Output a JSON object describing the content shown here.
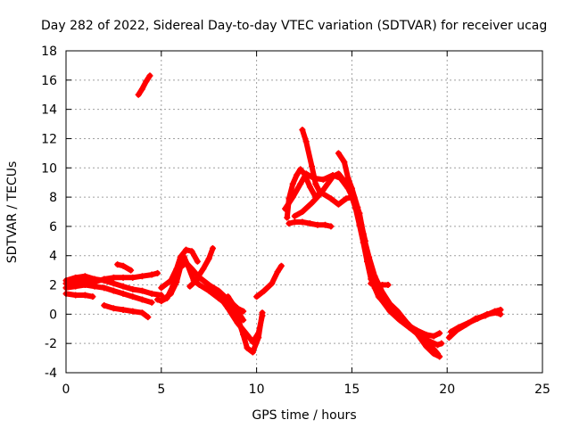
{
  "chart_data": {
    "type": "line",
    "title": "Day 282 of 2022, Sidereal Day-to-day VTEC variation (SDTVAR) for receiver ucag",
    "xlabel": "GPS time / hours",
    "ylabel": "SDTVAR / TECUs",
    "xlim": [
      0,
      25
    ],
    "ylim": [
      -4,
      18
    ],
    "x_ticks": [
      0,
      5,
      10,
      15,
      20,
      25
    ],
    "y_ticks": [
      -4,
      -2,
      0,
      2,
      4,
      6,
      8,
      10,
      12,
      14,
      16,
      18
    ],
    "grid": true,
    "color": "#ff0000",
    "series": [
      {
        "name": "s1",
        "points": [
          [
            0,
            2.3
          ],
          [
            0.5,
            2.5
          ],
          [
            1,
            2.6
          ],
          [
            1.5,
            2.4
          ],
          [
            2,
            2.3
          ],
          [
            2.5,
            2.1
          ],
          [
            3,
            1.9
          ],
          [
            3.5,
            1.7
          ],
          [
            4,
            1.6
          ],
          [
            4.5,
            1.4
          ],
          [
            5,
            1.3
          ]
        ]
      },
      {
        "name": "s2",
        "points": [
          [
            0,
            2.1
          ],
          [
            0.5,
            2.2
          ],
          [
            1,
            2.3
          ],
          [
            1.5,
            2.2
          ],
          [
            2,
            2.4
          ],
          [
            2.5,
            2.5
          ],
          [
            3,
            2.5
          ],
          [
            3.5,
            2.5
          ],
          [
            4,
            2.6
          ],
          [
            4.5,
            2.7
          ],
          [
            4.8,
            2.8
          ]
        ]
      },
      {
        "name": "s3",
        "points": [
          [
            0,
            1.4
          ],
          [
            0.5,
            1.3
          ],
          [
            1,
            1.3
          ],
          [
            1.4,
            1.2
          ]
        ]
      },
      {
        "name": "s4",
        "points": [
          [
            0,
            1.8
          ],
          [
            0.5,
            1.9
          ],
          [
            1,
            2.0
          ],
          [
            1.5,
            1.9
          ],
          [
            2,
            1.8
          ],
          [
            2.5,
            1.6
          ],
          [
            3,
            1.4
          ],
          [
            3.5,
            1.2
          ],
          [
            4,
            1.0
          ],
          [
            4.5,
            0.8
          ]
        ]
      },
      {
        "name": "s5",
        "points": [
          [
            2,
            0.6
          ],
          [
            2.5,
            0.4
          ],
          [
            3,
            0.3
          ],
          [
            3.5,
            0.2
          ],
          [
            4,
            0.1
          ],
          [
            4.3,
            -0.2
          ]
        ]
      },
      {
        "name": "s6",
        "points": [
          [
            2.7,
            3.4
          ],
          [
            3,
            3.3
          ],
          [
            3.4,
            3.0
          ]
        ]
      },
      {
        "name": "s7",
        "points": [
          [
            3.8,
            15.0
          ],
          [
            4.0,
            15.4
          ],
          [
            4.2,
            15.9
          ],
          [
            4.4,
            16.3
          ]
        ]
      },
      {
        "name": "s8",
        "points": [
          [
            4.8,
            1.0
          ],
          [
            5,
            0.9
          ],
          [
            5.3,
            1.1
          ],
          [
            5.6,
            1.9
          ],
          [
            5.8,
            3.0
          ],
          [
            6.0,
            3.6
          ],
          [
            6.2,
            3.9
          ],
          [
            6.4,
            3.3
          ],
          [
            6.7,
            2.3
          ],
          [
            7,
            2.0
          ],
          [
            7.5,
            1.6
          ],
          [
            8,
            1.1
          ],
          [
            8.5,
            0.6
          ],
          [
            9,
            -0.2
          ],
          [
            9.3,
            -1.4
          ],
          [
            9.5,
            -2.3
          ],
          [
            9.8,
            -2.6
          ],
          [
            10.1,
            -1.6
          ],
          [
            10.3,
            0.1
          ]
        ]
      },
      {
        "name": "s9",
        "points": [
          [
            5.0,
            1.8
          ],
          [
            5.5,
            2.3
          ],
          [
            5.8,
            3.1
          ],
          [
            6.0,
            3.9
          ],
          [
            6.3,
            4.4
          ],
          [
            6.6,
            4.3
          ],
          [
            6.9,
            3.6
          ]
        ]
      },
      {
        "name": "s10",
        "points": [
          [
            5.0,
            0.9
          ],
          [
            5.5,
            1.4
          ],
          [
            5.8,
            2.2
          ],
          [
            6.0,
            3.2
          ],
          [
            6.3,
            3.5
          ],
          [
            6.6,
            3.1
          ],
          [
            7.0,
            2.5
          ],
          [
            7.5,
            2.0
          ],
          [
            8.0,
            1.6
          ],
          [
            8.5,
            1.0
          ],
          [
            9.0,
            0.4
          ],
          [
            9.3,
            0.2
          ]
        ]
      },
      {
        "name": "s11",
        "points": [
          [
            6.5,
            1.9
          ],
          [
            7,
            2.5
          ],
          [
            7.5,
            2.0
          ],
          [
            8.0,
            1.3
          ],
          [
            8.5,
            0.4
          ],
          [
            9.0,
            -0.6
          ],
          [
            9.5,
            -1.4
          ],
          [
            9.8,
            -1.9
          ],
          [
            10.1,
            -1.3
          ],
          [
            10.3,
            -0.1
          ]
        ]
      },
      {
        "name": "s12",
        "points": [
          [
            6.9,
            2.5
          ],
          [
            7.2,
            3.1
          ],
          [
            7.5,
            3.8
          ],
          [
            7.7,
            4.5
          ]
        ]
      },
      {
        "name": "s13",
        "points": [
          [
            8.5,
            1.2
          ],
          [
            9,
            0.2
          ],
          [
            9.3,
            -0.4
          ]
        ]
      },
      {
        "name": "s14",
        "points": [
          [
            10.0,
            1.2
          ],
          [
            10.4,
            1.6
          ],
          [
            10.8,
            2.1
          ],
          [
            11.1,
            2.9
          ],
          [
            11.3,
            3.3
          ]
        ]
      },
      {
        "name": "s15",
        "points": [
          [
            11.6,
            6.6
          ],
          [
            11.7,
            7.9
          ],
          [
            11.9,
            8.9
          ],
          [
            12.1,
            9.5
          ],
          [
            12.3,
            9.9
          ],
          [
            12.5,
            9.6
          ],
          [
            12.8,
            8.7
          ],
          [
            13.1,
            8.0
          ],
          [
            13.5,
            8.5
          ],
          [
            14.0,
            9.4
          ],
          [
            14.3,
            9.6
          ],
          [
            14.6,
            9.1
          ],
          [
            14.9,
            8.4
          ],
          [
            15.2,
            7.6
          ],
          [
            15.4,
            6.9
          ],
          [
            15.6,
            5.5
          ],
          [
            15.8,
            4.1
          ],
          [
            16.0,
            2.8
          ],
          [
            16.2,
            1.8
          ],
          [
            16.6,
            0.9
          ],
          [
            17.0,
            0.2
          ],
          [
            17.5,
            -0.4
          ],
          [
            18.0,
            -0.9
          ],
          [
            18.5,
            -1.4
          ],
          [
            19.0,
            -1.8
          ],
          [
            19.5,
            -2.1
          ],
          [
            19.7,
            -2.0
          ]
        ]
      },
      {
        "name": "s16",
        "points": [
          [
            11.5,
            7.2
          ],
          [
            11.9,
            8.0
          ],
          [
            12.3,
            8.9
          ],
          [
            12.6,
            9.6
          ],
          [
            13.0,
            9.3
          ],
          [
            13.5,
            9.2
          ],
          [
            14.0,
            9.5
          ],
          [
            14.4,
            9.3
          ],
          [
            14.8,
            8.6
          ],
          [
            15.1,
            7.8
          ],
          [
            15.4,
            6.6
          ],
          [
            15.6,
            5.2
          ],
          [
            15.9,
            3.6
          ],
          [
            16.2,
            2.3
          ],
          [
            16.7,
            1.1
          ],
          [
            17.2,
            0.3
          ],
          [
            17.7,
            -0.5
          ],
          [
            18.3,
            -1.2
          ],
          [
            18.8,
            -1.7
          ],
          [
            19.3,
            -2.4
          ],
          [
            19.5,
            -2.7
          ]
        ]
      },
      {
        "name": "s17",
        "points": [
          [
            11.7,
            6.2
          ],
          [
            12.0,
            6.3
          ],
          [
            12.4,
            6.3
          ],
          [
            12.8,
            6.2
          ],
          [
            13.2,
            6.1
          ],
          [
            13.6,
            6.1
          ],
          [
            13.9,
            6.0
          ]
        ]
      },
      {
        "name": "s18",
        "points": [
          [
            12.0,
            6.7
          ],
          [
            12.4,
            7.0
          ],
          [
            12.9,
            7.6
          ],
          [
            13.4,
            8.3
          ],
          [
            13.9,
            7.9
          ],
          [
            14.3,
            7.5
          ],
          [
            14.7,
            7.9
          ],
          [
            15.0,
            8.0
          ],
          [
            15.2,
            7.2
          ],
          [
            15.4,
            6.1
          ],
          [
            15.6,
            4.9
          ],
          [
            15.8,
            3.6
          ],
          [
            16.0,
            2.4
          ],
          [
            16.4,
            1.2
          ],
          [
            16.9,
            0.5
          ],
          [
            17.4,
            -0.2
          ],
          [
            17.9,
            -0.7
          ],
          [
            18.4,
            -1.1
          ],
          [
            18.9,
            -1.4
          ],
          [
            19.3,
            -1.5
          ],
          [
            19.6,
            -1.3
          ]
        ]
      },
      {
        "name": "s19",
        "points": [
          [
            12.4,
            12.6
          ],
          [
            12.6,
            11.8
          ],
          [
            12.9,
            10.1
          ],
          [
            13.1,
            8.9
          ],
          [
            13.3,
            8.4
          ]
        ]
      },
      {
        "name": "s20",
        "points": [
          [
            14.3,
            11.0
          ],
          [
            14.6,
            10.4
          ],
          [
            14.8,
            9.3
          ],
          [
            15.0,
            8.6
          ],
          [
            15.3,
            7.3
          ],
          [
            15.5,
            6.1
          ],
          [
            15.7,
            5.0
          ]
        ]
      },
      {
        "name": "s21",
        "points": [
          [
            15.0,
            8.3
          ],
          [
            15.3,
            6.9
          ],
          [
            15.6,
            5.4
          ],
          [
            15.9,
            3.9
          ],
          [
            16.2,
            2.6
          ],
          [
            16.6,
            1.5
          ],
          [
            17.0,
            0.7
          ],
          [
            17.4,
            0.2
          ],
          [
            17.9,
            -0.6
          ],
          [
            18.4,
            -1.3
          ],
          [
            18.9,
            -2.2
          ],
          [
            19.3,
            -2.7
          ],
          [
            19.6,
            -2.9
          ]
        ]
      },
      {
        "name": "s22",
        "points": [
          [
            16.0,
            2.1
          ],
          [
            16.3,
            2.0
          ],
          [
            16.6,
            2.0
          ],
          [
            16.9,
            2.0
          ]
        ]
      },
      {
        "name": "s23",
        "points": [
          [
            20.1,
            -1.6
          ],
          [
            20.5,
            -1.1
          ],
          [
            21.0,
            -0.7
          ],
          [
            21.5,
            -0.3
          ],
          [
            22.0,
            -0.1
          ],
          [
            22.5,
            0.2
          ],
          [
            22.8,
            0.3
          ]
        ]
      },
      {
        "name": "s24",
        "points": [
          [
            20.2,
            -1.2
          ],
          [
            20.6,
            -0.9
          ],
          [
            21.1,
            -0.6
          ],
          [
            21.6,
            -0.3
          ],
          [
            22.1,
            0.0
          ],
          [
            22.6,
            0.1
          ],
          [
            22.8,
            0.0
          ]
        ]
      }
    ]
  }
}
